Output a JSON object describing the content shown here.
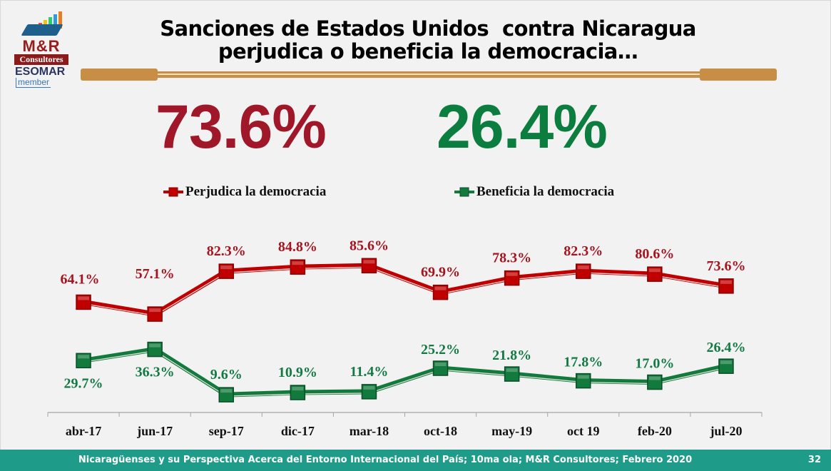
{
  "logo": {
    "brand": "M&R",
    "subtitle": "Consultores",
    "association": "ESOMAR",
    "association_sub": "member"
  },
  "header": {
    "title_line1": "Sanciones de Estados Unidos  contra Nicaragua",
    "title_line2": "perjudica o beneficia la democracia…"
  },
  "highlights": {
    "perjudica": "73.6%",
    "beneficia": "26.4%"
  },
  "colors": {
    "red": "#c00000",
    "red_dark": "#9f1728",
    "green": "#127a3c",
    "green_dark": "#0b7d3e",
    "accent_gold": "#c98e45",
    "footer_teal": "#1e9c89"
  },
  "chart_data": {
    "type": "line",
    "title": "Sanciones de Estados Unidos contra Nicaragua perjudica o beneficia la democracia…",
    "xlabel": "",
    "ylabel": "",
    "ylim": [
      0,
      100
    ],
    "grid": false,
    "legend_position": "top",
    "categories": [
      "abr-17",
      "jun-17",
      "sep-17",
      "dic-17",
      "mar-18",
      "oct-18",
      "may-19",
      "oct 19",
      "feb-20",
      "jul-20"
    ],
    "series": [
      {
        "name": "Perjudica la democracia",
        "color": "#c00000",
        "values": [
          64.1,
          57.1,
          82.3,
          84.8,
          85.6,
          69.9,
          78.3,
          82.3,
          80.6,
          73.6
        ],
        "labels": [
          "64.1%",
          "57.1%",
          "82.3%",
          "84.8%",
          "85.6%",
          "69.9%",
          "78.3%",
          "82.3%",
          "80.6%",
          "73.6%"
        ]
      },
      {
        "name": "Beneficia la democracia",
        "color": "#127a3c",
        "values": [
          29.7,
          36.3,
          9.6,
          10.9,
          11.4,
          25.2,
          21.8,
          17.8,
          17.0,
          26.4
        ],
        "labels": [
          "29.7%",
          "36.3%",
          "9.6%",
          "10.9%",
          "11.4%",
          "25.2%",
          "21.8%",
          "17.8%",
          "17.0%",
          "26.4%"
        ]
      }
    ]
  },
  "footer": {
    "text": "Nicaragüenses y su Perspectiva Acerca del Entorno Internacional del País; 10ma ola; M&R Consultores; Febrero 2020",
    "page": "32"
  }
}
